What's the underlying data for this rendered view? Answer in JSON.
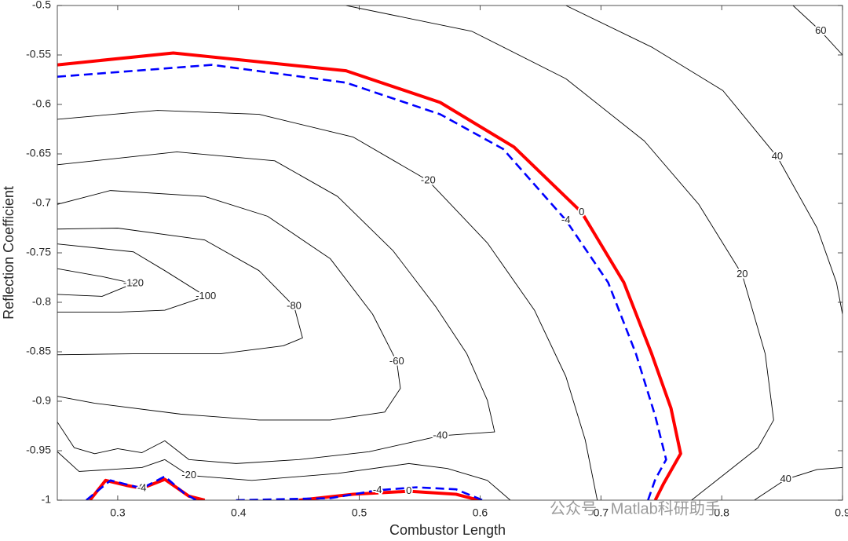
{
  "chart_data": {
    "type": "contour",
    "x_label": "Combustor Length",
    "y_label": "Reflection Coefficient",
    "xlim": [
      0.25,
      0.9
    ],
    "xticks": [
      0.3,
      0.4,
      0.5,
      0.6,
      0.7,
      0.8,
      0.9
    ],
    "ylim": [
      -1,
      -0.5
    ],
    "yticks": [
      -1,
      -0.95,
      -0.9,
      -0.85,
      -0.8,
      -0.75,
      -0.7,
      -0.65,
      -0.6,
      -0.55,
      -0.5
    ],
    "watermark": "公众号 · Matlab科研助手",
    "contours": [
      {
        "level": 0,
        "color": "#ff0000",
        "dashed": false,
        "x": [
          0.25,
          0.346,
          0.489,
          0.567,
          0.628,
          0.684,
          0.719,
          0.742,
          0.758,
          0.766,
          0.752,
          0.745
        ],
        "y": [
          -0.56,
          -0.548,
          -0.566,
          -0.598,
          -0.643,
          -0.709,
          -0.78,
          -0.852,
          -0.907,
          -0.953,
          -0.983,
          -1
        ]
      },
      {
        "level": 0,
        "color": "#ff0000",
        "dashed": false,
        "x": [
          0.45,
          0.495,
          0.541,
          0.58,
          0.599
        ],
        "y": [
          -1,
          -0.994,
          -0.991,
          -0.994,
          -1
        ]
      },
      {
        "level": 0,
        "color": "#ff0000",
        "dashed": false,
        "x": [
          0.277,
          0.29,
          0.307,
          0.32,
          0.339,
          0.359,
          0.372
        ],
        "y": [
          -1,
          -0.98,
          -0.985,
          -0.988,
          -0.979,
          -0.996,
          -1
        ]
      },
      {
        "level": -4,
        "color": "#0000ff",
        "dashed": true,
        "x": [
          0.25,
          0.378,
          0.489,
          0.567,
          0.619,
          0.671,
          0.706,
          0.729,
          0.745,
          0.754,
          0.745,
          0.739
        ],
        "y": [
          -0.572,
          -0.56,
          -0.578,
          -0.61,
          -0.645,
          -0.717,
          -0.78,
          -0.852,
          -0.915,
          -0.959,
          -0.979,
          -1
        ]
      },
      {
        "level": -4,
        "color": "#0000ff",
        "dashed": true,
        "x": [
          0.398,
          0.476,
          0.515,
          0.547,
          0.58,
          0.602
        ],
        "y": [
          -1,
          -0.998,
          -0.99,
          -0.987,
          -0.989,
          -1
        ]
      },
      {
        "level": -4,
        "color": "#0000ff",
        "dashed": true,
        "x": [
          0.274,
          0.294,
          0.32,
          0.339,
          0.355,
          0.365
        ],
        "y": [
          -1,
          -0.98,
          -0.988,
          -0.976,
          -0.993,
          -1
        ]
      },
      {
        "level": -20,
        "color": "#000000",
        "dashed": false,
        "x": [
          0.25,
          0.333,
          0.417,
          0.495,
          0.557,
          0.606,
          0.645,
          0.671,
          0.687,
          0.697
        ],
        "y": [
          -0.615,
          -0.606,
          -0.61,
          -0.633,
          -0.677,
          -0.74,
          -0.808,
          -0.875,
          -0.939,
          -1
        ]
      },
      {
        "level": -20,
        "color": "#000000",
        "dashed": false,
        "x": [
          0.25,
          0.268,
          0.294,
          0.32,
          0.339,
          0.359,
          0.411,
          0.482,
          0.541,
          0.573,
          0.606,
          0.625
        ],
        "y": [
          -0.951,
          -0.971,
          -0.969,
          -0.967,
          -0.959,
          -0.975,
          -0.98,
          -0.973,
          -0.963,
          -0.968,
          -0.98,
          -1
        ]
      },
      {
        "level": 20,
        "color": "#000000",
        "dashed": false,
        "x": [
          0.489,
          0.593,
          0.671,
          0.736,
          0.781,
          0.817,
          0.836,
          0.843,
          0.83,
          0.801,
          0.775
        ],
        "y": [
          -0.5,
          -0.526,
          -0.574,
          -0.637,
          -0.701,
          -0.772,
          -0.852,
          -0.919,
          -0.947,
          -0.975,
          -1
        ]
      },
      {
        "level": 40,
        "color": "#000000",
        "dashed": false,
        "x": [
          0.671,
          0.742,
          0.801,
          0.846,
          0.879,
          0.895,
          0.9
        ],
        "y": [
          -0.5,
          -0.542,
          -0.586,
          -0.653,
          -0.725,
          -0.78,
          -0.812
        ]
      },
      {
        "level": 40,
        "color": "#000000",
        "dashed": false,
        "x": [
          0.827,
          0.853,
          0.879,
          0.9
        ],
        "y": [
          -1,
          -0.979,
          -0.969,
          -0.967
        ]
      },
      {
        "level": 60,
        "color": "#000000",
        "dashed": false,
        "x": [
          0.859,
          0.882,
          0.9
        ],
        "y": [
          -0.5,
          -0.526,
          -0.55
        ]
      },
      {
        "level": -40,
        "color": "#000000",
        "dashed": false,
        "x": [
          0.25,
          0.349,
          0.43,
          0.482,
          0.528,
          0.563,
          0.589,
          0.606,
          0.612,
          0.567,
          0.508,
          0.45,
          0.398,
          0.359,
          0.339,
          0.32,
          0.3,
          0.281,
          0.264,
          0.25
        ],
        "y": [
          -0.661,
          -0.648,
          -0.657,
          -0.693,
          -0.748,
          -0.804,
          -0.852,
          -0.899,
          -0.931,
          -0.935,
          -0.951,
          -0.959,
          -0.963,
          -0.959,
          -0.94,
          -0.952,
          -0.948,
          -0.953,
          -0.947,
          -0.921
        ]
      },
      {
        "level": -60,
        "color": "#000000",
        "dashed": false,
        "x": [
          0.25,
          0.294,
          0.372,
          0.424,
          0.476,
          0.511,
          0.531,
          0.534,
          0.521,
          0.476,
          0.417,
          0.352,
          0.281,
          0.25
        ],
        "y": [
          -0.701,
          -0.687,
          -0.693,
          -0.713,
          -0.756,
          -0.812,
          -0.86,
          -0.887,
          -0.911,
          -0.919,
          -0.919,
          -0.913,
          -0.902,
          -0.895
        ]
      },
      {
        "level": -80,
        "color": "#000000",
        "dashed": false,
        "x": [
          0.25,
          0.3,
          0.372,
          0.417,
          0.446,
          0.453,
          0.437,
          0.385,
          0.313,
          0.25
        ],
        "y": [
          -0.726,
          -0.725,
          -0.737,
          -0.768,
          -0.804,
          -0.836,
          -0.844,
          -0.852,
          -0.852,
          -0.853
        ]
      },
      {
        "level": -100,
        "color": "#000000",
        "dashed": false,
        "x": [
          0.25,
          0.313,
          0.339,
          0.373,
          0.339,
          0.3,
          0.25
        ],
        "y": [
          -0.741,
          -0.749,
          -0.768,
          -0.794,
          -0.808,
          -0.81,
          -0.81
        ]
      },
      {
        "level": -120,
        "color": "#000000",
        "dashed": false,
        "x": [
          0.25,
          0.287,
          0.313,
          0.287,
          0.25
        ],
        "y": [
          -0.766,
          -0.774,
          -0.781,
          -0.794,
          -0.792
        ]
      }
    ]
  }
}
